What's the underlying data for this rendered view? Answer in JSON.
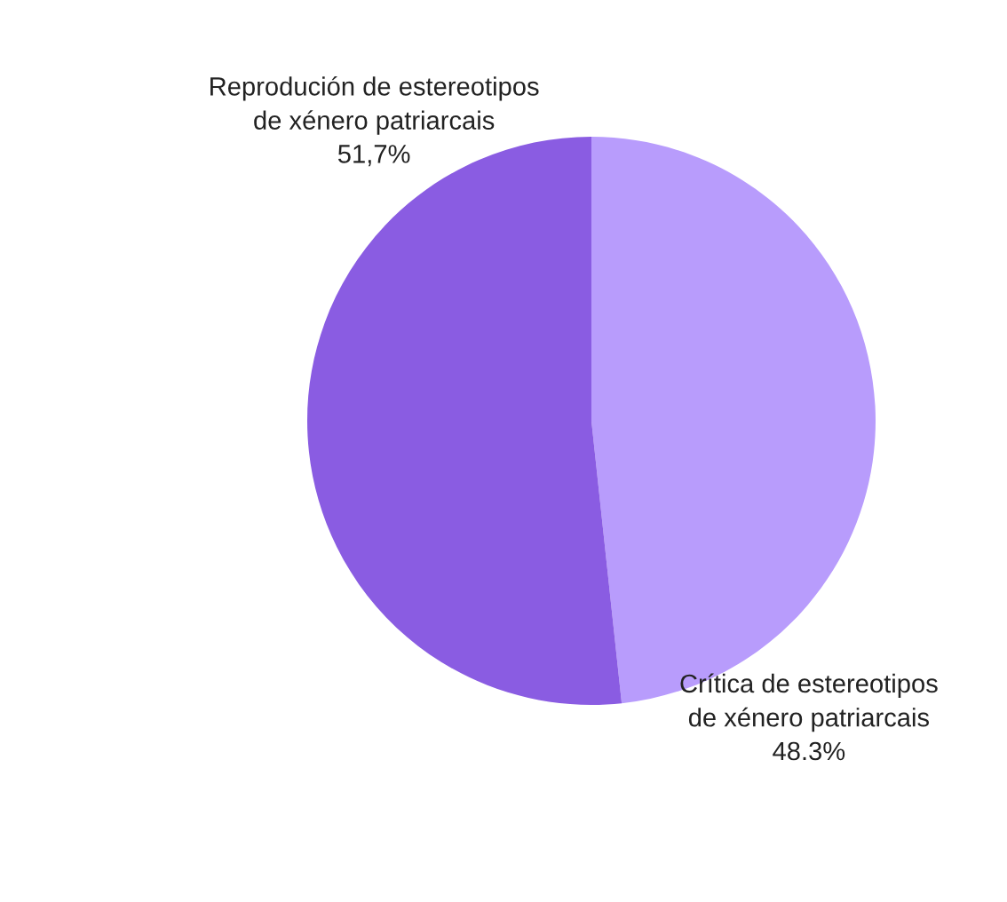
{
  "chart_data": {
    "type": "pie",
    "categories": [
      "Crítica de estereotipos\nde xénero patriarcais",
      "Reprodución de estereotipos\nde xénero patriarcais"
    ],
    "values": [
      48.3,
      51.7
    ],
    "value_labels": [
      "48.3%",
      "51,7%"
    ],
    "colors": [
      "#b89cfc",
      "#8a5ce2"
    ]
  }
}
